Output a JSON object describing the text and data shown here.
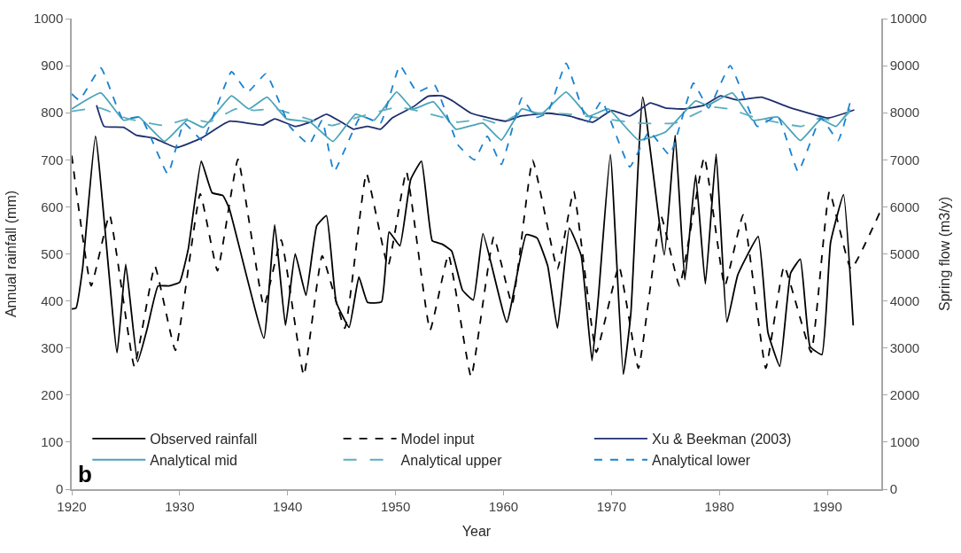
{
  "chart_data": {
    "type": "line",
    "xlabel": "Year",
    "ylabel": "Annual rainfall (mm)",
    "y2label": "Spring flow (m3/y)",
    "annotations": [
      "b"
    ],
    "xlim": [
      1920,
      1995
    ],
    "xticks": [
      1920,
      1930,
      1940,
      1950,
      1960,
      1970,
      1980,
      1990
    ],
    "ylim": [
      0,
      1000
    ],
    "yticks": [
      0,
      100,
      200,
      300,
      400,
      500,
      600,
      700,
      800,
      900,
      1000
    ],
    "y2lim": [
      0,
      10000
    ],
    "y2ticks": [
      0,
      1000,
      2000,
      3000,
      4000,
      5000,
      6000,
      7000,
      8000,
      9000,
      10000
    ],
    "legend": "bottom",
    "marker": "none",
    "series": [
      {
        "name": "Observed rainfall",
        "color": "#000000",
        "line_style": "solid",
        "x": [
          1920.0,
          1920.4,
          1921.0,
          1922.2,
          1924.2,
          1925.0,
          1926.1,
          1927.0,
          1928.0,
          1929.0,
          1930.0,
          1930.8,
          1932.0,
          1933.0,
          1934.0,
          1934.6,
          1937.8,
          1938.8,
          1939.8,
          1940.7,
          1941.7,
          1942.7,
          1943.6,
          1944.5,
          1945.7,
          1946.6,
          1947.4,
          1948.7,
          1949.4,
          1950.4,
          1951.4,
          1952.4,
          1953.4,
          1954.3,
          1955.2,
          1956.2,
          1957.2,
          1958.1,
          1960.3,
          1962.1,
          1963.1,
          1964.1,
          1965.0,
          1966.1,
          1967.2,
          1968.2,
          1968.8,
          1969.9,
          1971.1,
          1971.8,
          1972.9,
          1974.9,
          1975.9,
          1976.8,
          1977.8,
          1978.7,
          1979.7,
          1980.7,
          1981.7,
          1983.6,
          1984.5,
          1985.6,
          1986.6,
          1987.5,
          1988.4,
          1989.5,
          1990.3,
          1991.5,
          1992.4
        ],
        "values": [
          383,
          385,
          468,
          750,
          290,
          478,
          271,
          342,
          432,
          432,
          440,
          511,
          697,
          630,
          624,
          596,
          321,
          562,
          348,
          500,
          412,
          560,
          581,
          398,
          344,
          451,
          397,
          398,
          547,
          517,
          658,
          697,
          528,
          521,
          506,
          423,
          402,
          543,
          355,
          541,
          534,
          474,
          342,
          555,
          496,
          273,
          411,
          711,
          244,
          374,
          833,
          498,
          752,
          445,
          668,
          436,
          712,
          355,
          455,
          537,
          333,
          261,
          459,
          489,
          303,
          286,
          524,
          626,
          348
        ]
      },
      {
        "name": "Model input",
        "color": "#000000",
        "line_style": "dash",
        "x": [
          1920.0,
          1921.8,
          1923.5,
          1925.8,
          1927.7,
          1929.6,
          1931.9,
          1933.5,
          1935.4,
          1937.8,
          1939.4,
          1941.5,
          1943.2,
          1945.3,
          1947.3,
          1949.3,
          1951.0,
          1953.2,
          1954.9,
          1957.0,
          1959.1,
          1960.8,
          1962.7,
          1965.0,
          1966.5,
          1968.6,
          1970.7,
          1972.5,
          1974.6,
          1976.3,
          1978.6,
          1980.5,
          1982.2,
          1984.3,
          1986.0,
          1988.5,
          1990.2,
          1992.2,
          1994.9
        ],
        "values": [
          709,
          432,
          583,
          261,
          474,
          295,
          628,
          464,
          701,
          389,
          530,
          242,
          496,
          342,
          671,
          474,
          675,
          338,
          498,
          239,
          536,
          393,
          699,
          468,
          633,
          291,
          474,
          257,
          580,
          432,
          705,
          432,
          583,
          257,
          474,
          291,
          632,
          468,
          590
        ]
      },
      {
        "name": "Xu & Beekman (2003)",
        "color": "#1f2f6e",
        "line_style": "solid",
        "axis": "y2",
        "x": [
          1922.3,
          1923.0,
          1924.8,
          1926.0,
          1927.6,
          1929.7,
          1932.0,
          1934.6,
          1937.7,
          1938.8,
          1940.7,
          1942.1,
          1943.6,
          1944.7,
          1946.1,
          1947.4,
          1948.6,
          1949.7,
          1951.6,
          1953.0,
          1954.3,
          1955.3,
          1957.0,
          1960.2,
          1961.6,
          1964.1,
          1966.1,
          1968.3,
          1970.0,
          1971.7,
          1973.6,
          1975.0,
          1976.7,
          1978.6,
          1980.1,
          1981.7,
          1983.9,
          1986.4,
          1990.1,
          1992.5
        ],
        "values": [
          8160,
          7710,
          7690,
          7520,
          7460,
          7260,
          7460,
          7820,
          7740,
          7870,
          7710,
          7800,
          7970,
          7840,
          7650,
          7710,
          7650,
          7890,
          8120,
          8350,
          8360,
          8250,
          7990,
          7820,
          7930,
          7990,
          7930,
          7800,
          8050,
          7930,
          8210,
          8100,
          8080,
          8160,
          8360,
          8270,
          8330,
          8120,
          7890,
          8060
        ]
      },
      {
        "name": "Analytical mid",
        "color": "#4aa3b8",
        "line_style": "solid",
        "axis": "y2",
        "x": [
          1920.0,
          1922.7,
          1924.8,
          1926.2,
          1928.6,
          1930.7,
          1932.2,
          1934.8,
          1936.4,
          1938.1,
          1939.9,
          1942.1,
          1944.2,
          1946.3,
          1948.0,
          1950.1,
          1951.6,
          1953.5,
          1955.6,
          1958.1,
          1959.8,
          1961.7,
          1963.5,
          1965.8,
          1967.9,
          1969.7,
          1972.5,
          1975.0,
          1977.8,
          1978.9,
          1981.2,
          1983.1,
          1985.4,
          1987.5,
          1989.4,
          1990.8,
          1992.1
        ],
        "values": [
          8080,
          8420,
          7840,
          7910,
          7390,
          7840,
          7690,
          8360,
          8080,
          8330,
          7870,
          7800,
          7390,
          7970,
          7840,
          8440,
          8080,
          8230,
          7650,
          7780,
          7420,
          8080,
          7970,
          8440,
          7930,
          8080,
          7420,
          7590,
          8250,
          8160,
          8420,
          7840,
          7910,
          7410,
          7860,
          7710,
          8080
        ]
      },
      {
        "name": "Analytical upper",
        "color": "#5aaec0",
        "line_style": "longdash",
        "axis": "y2",
        "x": [
          1920.0,
          1922.6,
          1925.1,
          1928.5,
          1931.0,
          1932.7,
          1935.2,
          1936.9,
          1938.8,
          1944.1,
          1946.6,
          1950.3,
          1954.7,
          1955.8,
          1958.1,
          1959.6,
          1961.6,
          1966.1,
          1972.5,
          1975.9,
          1979.2,
          1980.9,
          1983.4,
          1987.6,
          1989.3,
          1991.1,
          1992.1
        ],
        "values": [
          8030,
          8100,
          7880,
          7730,
          7880,
          7800,
          8080,
          8050,
          8080,
          7730,
          7910,
          8120,
          7880,
          7800,
          7860,
          7760,
          7990,
          7970,
          7780,
          7780,
          8120,
          8080,
          7890,
          7710,
          7890,
          7800,
          8030
        ]
      },
      {
        "name": "Analytical lower",
        "color": "#1a82d0",
        "line_style": "dash",
        "axis": "y2",
        "x": [
          1920.0,
          1920.7,
          1922.7,
          1924.7,
          1926.4,
          1928.9,
          1930.4,
          1932.1,
          1934.8,
          1936.3,
          1938.0,
          1940.2,
          1942.0,
          1943.2,
          1944.3,
          1946.8,
          1948.6,
          1950.4,
          1952.0,
          1953.6,
          1955.8,
          1957.3,
          1958.5,
          1959.8,
          1961.7,
          1963.0,
          1964.1,
          1965.8,
          1967.8,
          1969.1,
          1971.7,
          1973.5,
          1975.4,
          1977.6,
          1979.0,
          1981.0,
          1983.5,
          1985.4,
          1987.3,
          1989.4,
          1991.0,
          1992.1
        ],
        "values": [
          8400,
          8270,
          8950,
          7880,
          7900,
          6700,
          7780,
          7410,
          8870,
          8440,
          8830,
          7710,
          7330,
          7840,
          6750,
          7930,
          7780,
          9000,
          8440,
          8590,
          7310,
          7000,
          7500,
          6900,
          8310,
          7900,
          8000,
          9050,
          7800,
          8250,
          6850,
          7600,
          7100,
          8630,
          8100,
          9000,
          7710,
          7930,
          6750,
          7890,
          7410,
          8210
        ]
      }
    ]
  }
}
